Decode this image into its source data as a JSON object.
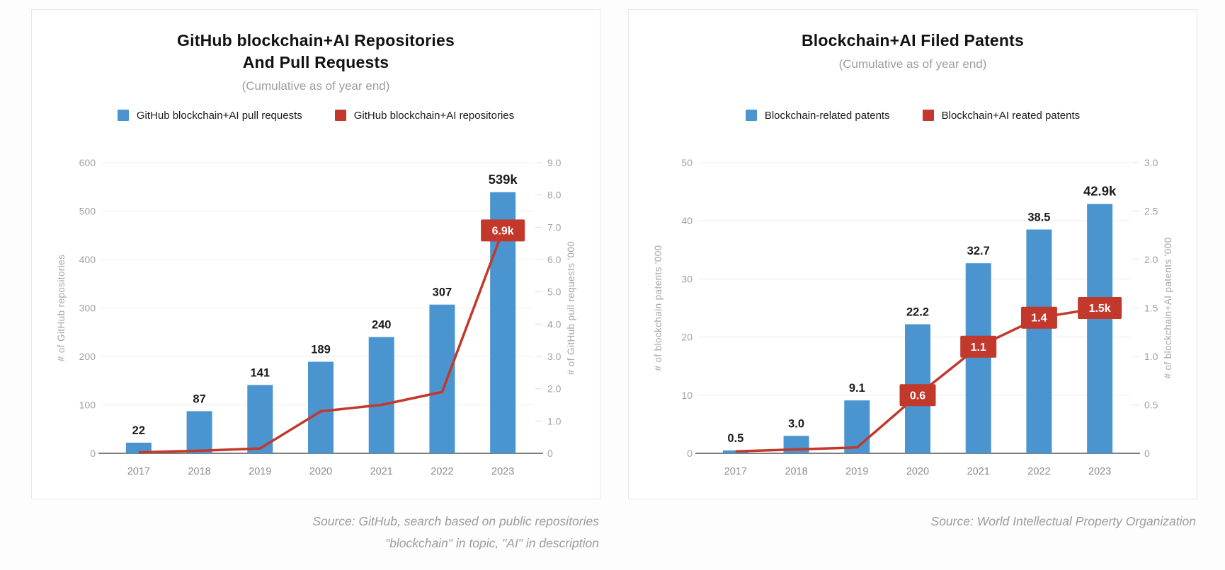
{
  "chart_data": [
    {
      "type": "bar+line",
      "title_line1": "GitHub blockchain+AI Repositories",
      "title_line2": "And Pull Requests",
      "subtitle": "(Cumulative as of year end)",
      "categories": [
        "2017",
        "2018",
        "2019",
        "2020",
        "2021",
        "2022",
        "2023"
      ],
      "bar_series": {
        "name": "GitHub blockchain+AI pull requests",
        "axis": "left",
        "values": [
          22,
          87,
          141,
          189,
          240,
          307,
          539
        ],
        "labels": [
          "22",
          "87",
          "141",
          "189",
          "240",
          "307",
          "539k"
        ]
      },
      "line_series": {
        "name": "GitHub blockchain+AI repositories",
        "axis": "right",
        "values": [
          0.03,
          0.08,
          0.15,
          1.3,
          1.5,
          1.9,
          6.9
        ],
        "badges": [
          null,
          null,
          null,
          null,
          null,
          null,
          "6.9k"
        ]
      },
      "left_axis": {
        "title": "# of GitHub repositories",
        "min": 0,
        "max": 600,
        "tick_values": [
          0,
          100,
          200,
          300,
          400,
          500,
          600
        ],
        "tick_labels": [
          "0",
          "100",
          "200",
          "300",
          "400",
          "500",
          "600"
        ]
      },
      "right_axis": {
        "title": "# of GitHub pull requests '000",
        "min": 0,
        "max": 9,
        "tick_values": [
          0,
          1,
          2,
          3,
          4,
          5,
          6,
          7,
          8,
          9
        ],
        "tick_labels": [
          "0",
          "1.0",
          "2.0",
          "3.0",
          "4.0",
          "5.0",
          "6.0",
          "7.0",
          "8.0",
          "9.0"
        ]
      },
      "colors": {
        "bar": "#4a94d0",
        "line": "#c2382b"
      },
      "grid": true,
      "legend_position": "top",
      "source_line1": "Source: GitHub, search based on public repositories",
      "source_line2": "\"blockchain\" in topic, \"AI\" in description"
    },
    {
      "type": "bar+line",
      "title_line1": "Blockchain+AI Filed Patents",
      "title_line2": "",
      "subtitle": "(Cumulative as of year end)",
      "categories": [
        "2017",
        "2018",
        "2019",
        "2020",
        "2021",
        "2022",
        "2023"
      ],
      "bar_series": {
        "name": "Blockchain-related patents",
        "axis": "left",
        "values": [
          0.5,
          3.0,
          9.1,
          22.2,
          32.7,
          38.5,
          42.9
        ],
        "labels": [
          "0.5",
          "3.0",
          "9.1",
          "22.2",
          "32.7",
          "38.5",
          "42.9k"
        ]
      },
      "line_series": {
        "name": "Blockchain+AI reated patents",
        "axis": "right",
        "values": [
          0.02,
          0.04,
          0.06,
          0.6,
          1.1,
          1.4,
          1.5
        ],
        "badges": [
          null,
          null,
          null,
          "0.6",
          "1.1",
          "1.4",
          "1.5k"
        ]
      },
      "left_axis": {
        "title": "# of blockchain patents '000",
        "min": 0,
        "max": 50,
        "tick_values": [
          0,
          10,
          20,
          30,
          40,
          50
        ],
        "tick_labels": [
          "0",
          "10",
          "20",
          "30",
          "40",
          "50"
        ]
      },
      "right_axis": {
        "title": "# of blockchain+AI patents '000",
        "min": 0,
        "max": 3,
        "tick_values": [
          0,
          0.5,
          1,
          1.5,
          2,
          2.5,
          3
        ],
        "tick_labels": [
          "0",
          "0.5",
          "1.0",
          "1.5",
          "2.0",
          "2.5",
          "3.0"
        ]
      },
      "colors": {
        "bar": "#4a94d0",
        "line": "#c2382b"
      },
      "grid": true,
      "legend_position": "top",
      "source_line1": "Source: World Intellectual Property Organization",
      "source_line2": ""
    }
  ]
}
